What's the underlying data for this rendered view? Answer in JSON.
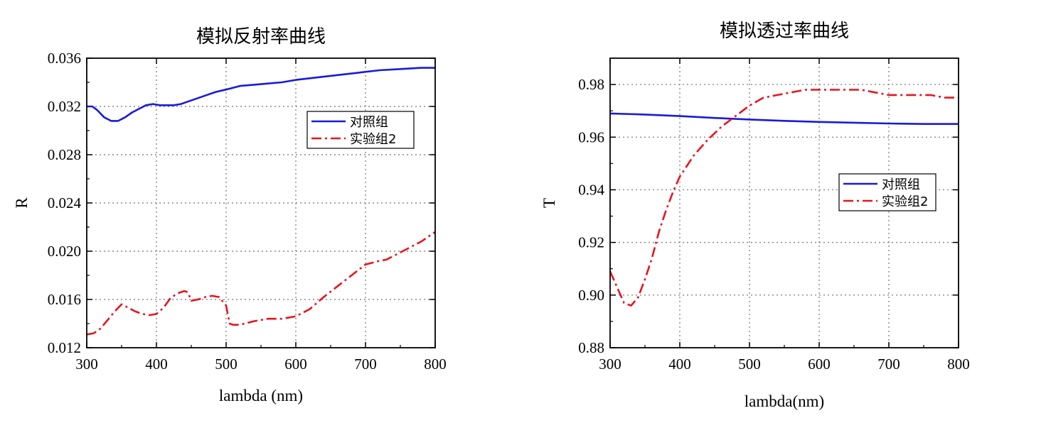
{
  "chart_data": [
    {
      "type": "line",
      "title": "模拟反射率曲线",
      "xlabel": "lambda (nm)",
      "ylabel": "R",
      "xlim": [
        300,
        800
      ],
      "ylim": [
        0.012,
        0.036
      ],
      "xticks": [
        300,
        400,
        500,
        600,
        700,
        800
      ],
      "yticks": [
        0.012,
        0.016,
        0.02,
        0.024,
        0.028,
        0.032,
        0.036
      ],
      "xtick_labels": [
        "300",
        "400",
        "500",
        "600",
        "700",
        "800"
      ],
      "ytick_labels": [
        "0.012",
        "0.016",
        "0.020",
        "0.024",
        "0.028",
        "0.032",
        "0.036"
      ],
      "grid": true,
      "legend_position": "upper-right",
      "series": [
        {
          "name": "对照组",
          "color": "#1a1adb",
          "style": "solid",
          "x": [
            300,
            308,
            315,
            325,
            335,
            345,
            355,
            365,
            375,
            385,
            395,
            405,
            415,
            425,
            435,
            445,
            455,
            470,
            485,
            500,
            520,
            540,
            560,
            580,
            600,
            630,
            660,
            690,
            720,
            750,
            780,
            800
          ],
          "y": [
            0.032,
            0.032,
            0.0317,
            0.0311,
            0.0308,
            0.0308,
            0.0311,
            0.0315,
            0.0318,
            0.0321,
            0.0322,
            0.0321,
            0.0321,
            0.0321,
            0.0322,
            0.0324,
            0.0326,
            0.0329,
            0.0332,
            0.0334,
            0.0337,
            0.0338,
            0.0339,
            0.034,
            0.0342,
            0.0344,
            0.0346,
            0.0348,
            0.035,
            0.0351,
            0.0352,
            0.0352
          ]
        },
        {
          "name": "实验组2",
          "color": "#e8141e",
          "style": "dashdot",
          "x": [
            300,
            310,
            320,
            330,
            340,
            350,
            360,
            370,
            380,
            390,
            400,
            410,
            420,
            430,
            440,
            445,
            450,
            460,
            470,
            480,
            490,
            500,
            505,
            510,
            520,
            540,
            560,
            580,
            600,
            620,
            640,
            660,
            680,
            700,
            720,
            730,
            740,
            760,
            780,
            800
          ],
          "y": [
            0.0131,
            0.0132,
            0.0136,
            0.0143,
            0.015,
            0.0156,
            0.0153,
            0.015,
            0.0148,
            0.0147,
            0.0148,
            0.0153,
            0.0161,
            0.0165,
            0.0167,
            0.0166,
            0.0159,
            0.016,
            0.0162,
            0.0163,
            0.0162,
            0.0155,
            0.014,
            0.0139,
            0.0139,
            0.0142,
            0.0144,
            0.0144,
            0.0146,
            0.0152,
            0.0162,
            0.0171,
            0.018,
            0.0189,
            0.0192,
            0.0193,
            0.0196,
            0.0202,
            0.0208,
            0.0216
          ]
        }
      ]
    },
    {
      "type": "line",
      "title": "模拟透过率曲线",
      "xlabel": "lambda(nm)",
      "ylabel": "T",
      "xlim": [
        300,
        800
      ],
      "ylim": [
        0.88,
        0.99
      ],
      "xticks": [
        300,
        400,
        500,
        600,
        700,
        800
      ],
      "yticks": [
        0.88,
        0.9,
        0.92,
        0.94,
        0.96,
        0.98
      ],
      "xtick_labels": [
        "300",
        "400",
        "500",
        "600",
        "700",
        "800"
      ],
      "ytick_labels": [
        "0.88",
        "0.90",
        "0.92",
        "0.94",
        "0.96",
        "0.98"
      ],
      "grid": true,
      "legend_position": "center-right",
      "series": [
        {
          "name": "对照组",
          "color": "#1a1adb",
          "style": "solid",
          "x": [
            300,
            350,
            400,
            450,
            500,
            550,
            600,
            650,
            700,
            750,
            800
          ],
          "y": [
            0.969,
            0.9686,
            0.968,
            0.9673,
            0.9667,
            0.9662,
            0.9658,
            0.9655,
            0.9652,
            0.965,
            0.965
          ]
        },
        {
          "name": "实验组2",
          "color": "#e8141e",
          "style": "dashdot",
          "x": [
            300,
            310,
            320,
            330,
            340,
            350,
            360,
            370,
            380,
            390,
            400,
            420,
            440,
            460,
            480,
            500,
            520,
            540,
            560,
            580,
            600,
            620,
            640,
            660,
            680,
            700,
            720,
            740,
            760,
            780,
            800
          ],
          "y": [
            0.909,
            0.903,
            0.897,
            0.896,
            0.899,
            0.906,
            0.914,
            0.924,
            0.932,
            0.939,
            0.945,
            0.953,
            0.959,
            0.964,
            0.968,
            0.972,
            0.975,
            0.976,
            0.977,
            0.978,
            0.978,
            0.978,
            0.978,
            0.978,
            0.977,
            0.976,
            0.976,
            0.976,
            0.976,
            0.975,
            0.975
          ]
        }
      ]
    }
  ]
}
